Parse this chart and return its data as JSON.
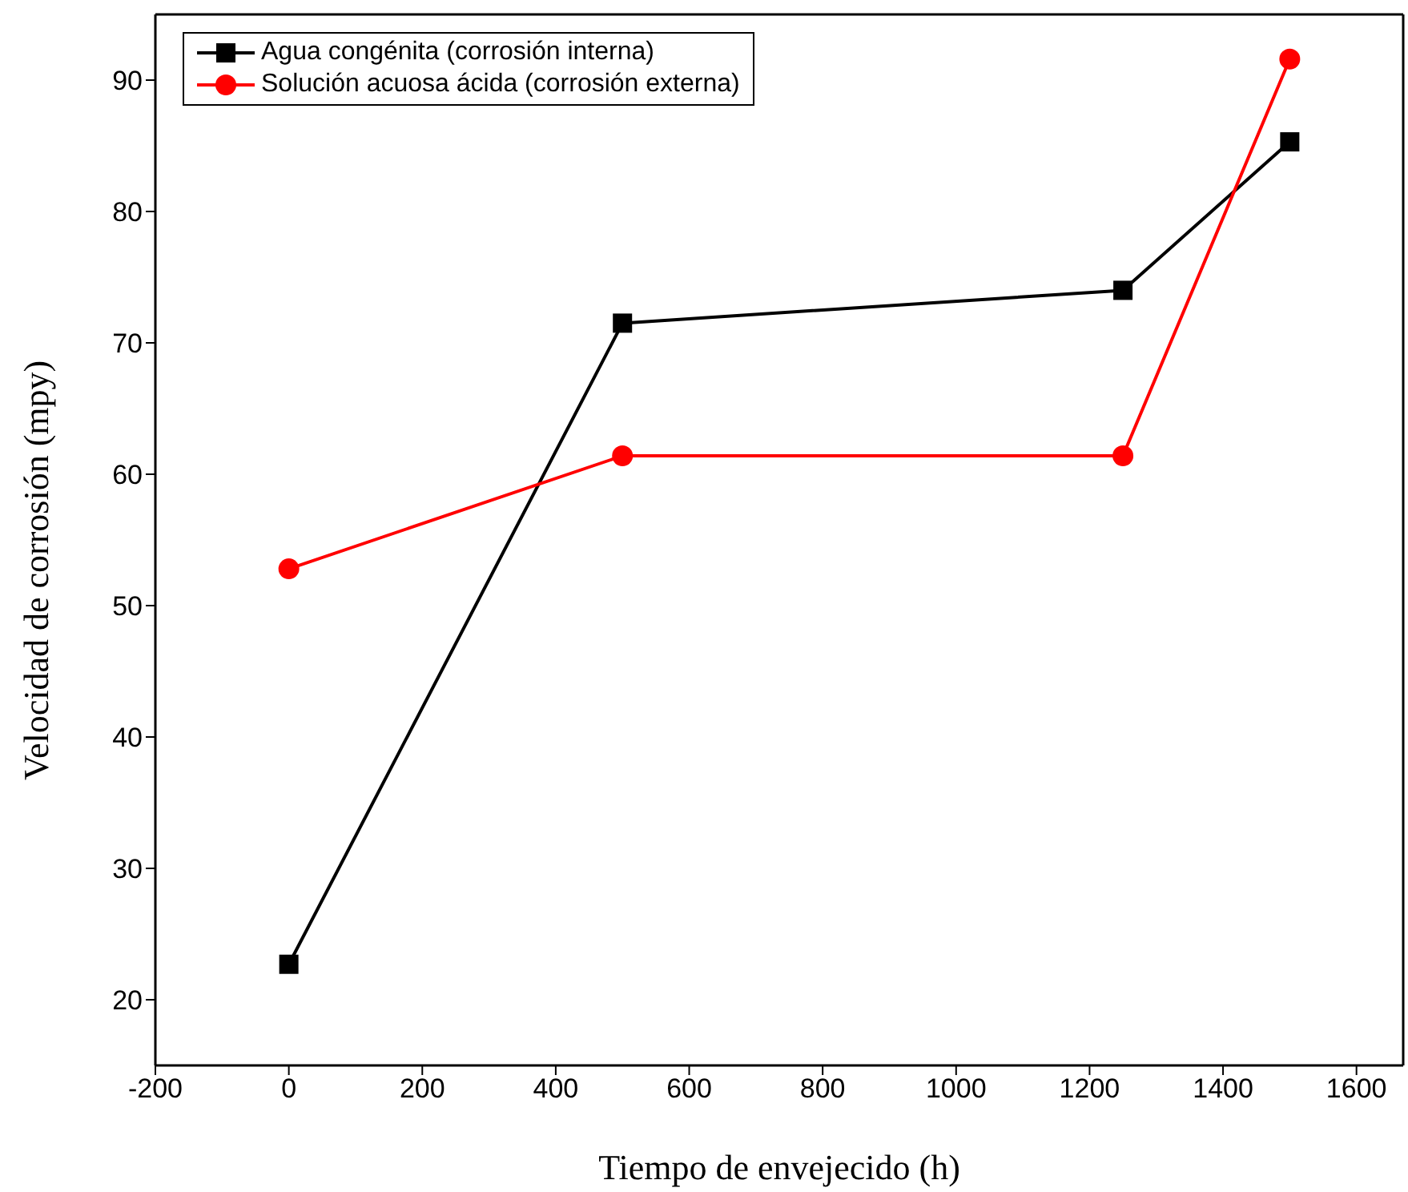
{
  "chart_data": {
    "type": "line",
    "xlabel": "Tiempo de envejecido  (h)",
    "ylabel": "Velocidad de corrosión (mpy)",
    "x": [
      0,
      500,
      1250,
      1500
    ],
    "series": [
      {
        "name": "Agua congénita (corrosión interna)",
        "color": "#000000",
        "values": [
          22.7,
          71.5,
          74,
          85.3
        ],
        "marker": "square"
      },
      {
        "name": "Solución acuosa ácida (corrosión externa)",
        "color": "#ff0000",
        "values": [
          52.8,
          61.4,
          61.4,
          91.6
        ],
        "marker": "circle"
      }
    ],
    "xlim": [
      -200,
      1670
    ],
    "xticks": [
      -200,
      0,
      200,
      400,
      600,
      800,
      1000,
      1200,
      1400,
      1600
    ],
    "ylim": [
      15,
      95
    ],
    "yticks": [
      20,
      30,
      40,
      50,
      60,
      70,
      80,
      90
    ],
    "grid": false,
    "legend": "top left",
    "line_style": "solid"
  }
}
